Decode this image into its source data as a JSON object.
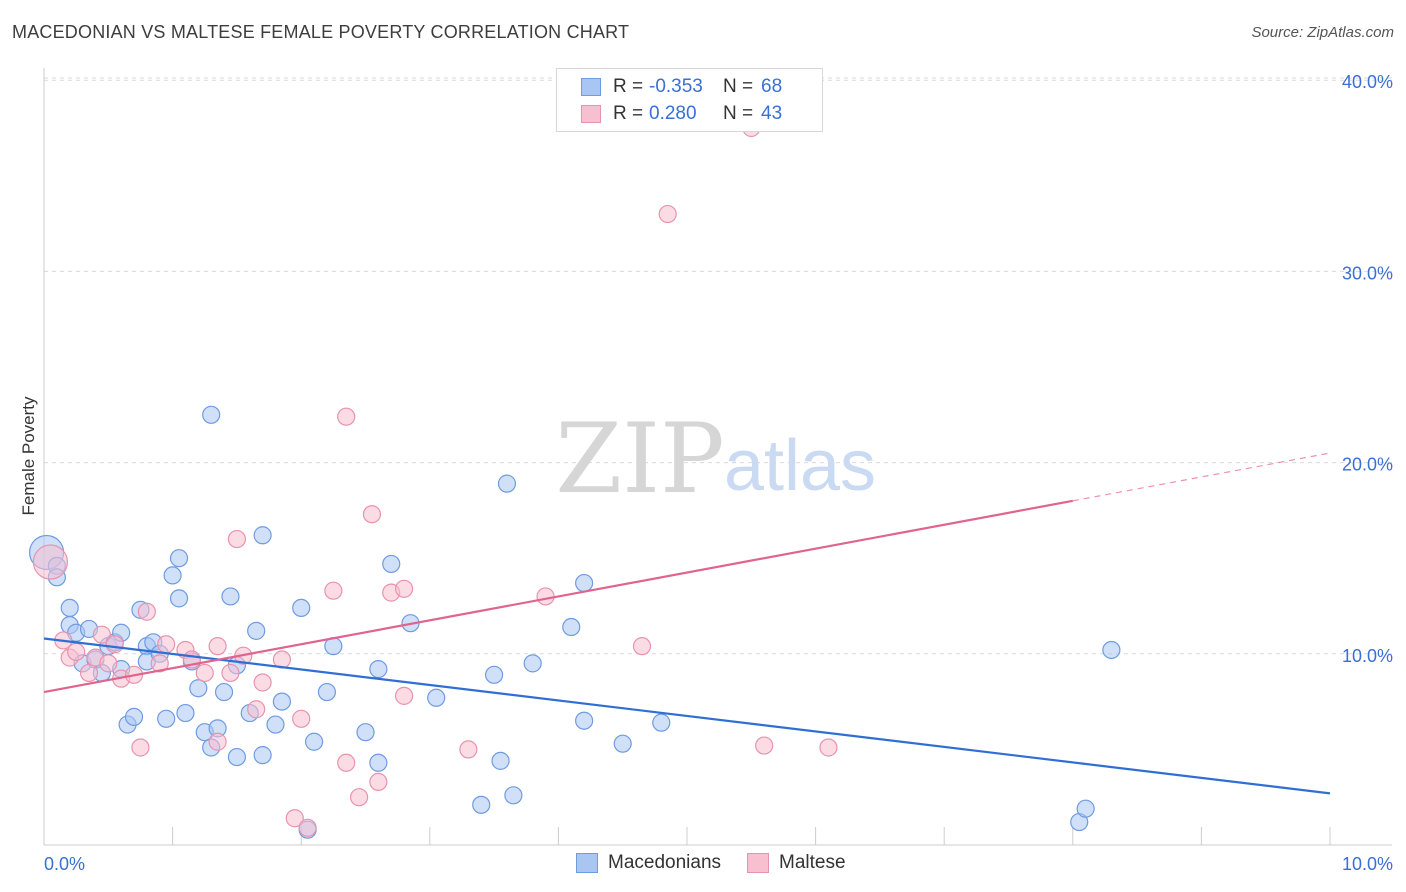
{
  "title": "MACEDONIAN VS MALTESE FEMALE POVERTY CORRELATION CHART",
  "source": "Source: ZipAtlas.com",
  "colors": {
    "macedonians_fill": "#a9c6f2",
    "macedonians_stroke": "#6f9be0",
    "macedonians_line": "#2f6fd4",
    "maltese_fill": "#f7bfd0",
    "maltese_stroke": "#e893ae",
    "maltese_line": "#e0648f",
    "axis_text": "#3a6fd6",
    "grid": "#d9d9d9"
  },
  "legend": {
    "rows": [
      {
        "r_label": "R =",
        "r_value": "-0.353",
        "n_label": "N =",
        "n_value": "68"
      },
      {
        "r_label": "R =",
        "r_value": "0.280",
        "n_label": "N =",
        "n_value": "43"
      }
    ],
    "bottom": [
      "Macedonians",
      "Maltese"
    ]
  },
  "watermark": {
    "zip": "ZIP",
    "atlas": "atlas"
  },
  "chart_data": {
    "type": "scatter",
    "title": "MACEDONIAN VS MALTESE FEMALE POVERTY CORRELATION CHART",
    "xlabel": "",
    "ylabel": "Female Poverty",
    "xlim": [
      0,
      10
    ],
    "ylim": [
      0,
      41.5
    ],
    "x_tick_labels": [
      {
        "value": 0,
        "label": "0.0%"
      },
      {
        "value": 10,
        "label": "10.0%"
      }
    ],
    "x_ticks": [
      0,
      1,
      2,
      3,
      4,
      5,
      6,
      7,
      8,
      9,
      10
    ],
    "y_ticks": [
      {
        "value": 10,
        "label": "10.0%"
      },
      {
        "value": 20,
        "label": "20.0%"
      },
      {
        "value": 30,
        "label": "30.0%"
      },
      {
        "value": 40,
        "label": "40.0%"
      }
    ],
    "grid": true,
    "series": [
      {
        "name": "Macedonians",
        "r": -0.353,
        "n": 68,
        "trend": {
          "x0": 0,
          "y0": 10.8,
          "x1": 10,
          "y1": 2.7
        },
        "points": [
          [
            0.02,
            15.3,
            "big"
          ],
          [
            0.1,
            14.6
          ],
          [
            0.1,
            14.0
          ],
          [
            0.2,
            12.4
          ],
          [
            0.2,
            11.5
          ],
          [
            0.25,
            11.1
          ],
          [
            0.3,
            9.5
          ],
          [
            0.35,
            11.3
          ],
          [
            0.4,
            9.7
          ],
          [
            0.45,
            9.0
          ],
          [
            0.5,
            10.4
          ],
          [
            0.55,
            10.6
          ],
          [
            0.6,
            11.1
          ],
          [
            0.6,
            9.2
          ],
          [
            0.65,
            6.3
          ],
          [
            0.7,
            6.7
          ],
          [
            0.75,
            12.3
          ],
          [
            0.8,
            10.4
          ],
          [
            0.8,
            9.6
          ],
          [
            0.85,
            10.6
          ],
          [
            0.9,
            10.0
          ],
          [
            0.95,
            6.6
          ],
          [
            1.0,
            14.1
          ],
          [
            1.05,
            12.9
          ],
          [
            1.05,
            15.0
          ],
          [
            1.1,
            6.9
          ],
          [
            1.15,
            9.6
          ],
          [
            1.2,
            8.2
          ],
          [
            1.25,
            5.9
          ],
          [
            1.3,
            5.1
          ],
          [
            1.3,
            22.5
          ],
          [
            1.35,
            6.1
          ],
          [
            1.4,
            8.0
          ],
          [
            1.45,
            13.0
          ],
          [
            1.5,
            9.4
          ],
          [
            1.5,
            4.6
          ],
          [
            1.6,
            6.9
          ],
          [
            1.65,
            11.2
          ],
          [
            1.7,
            16.2
          ],
          [
            1.7,
            4.7
          ],
          [
            1.8,
            6.3
          ],
          [
            1.85,
            7.5
          ],
          [
            2.0,
            12.4
          ],
          [
            2.05,
            0.8
          ],
          [
            2.1,
            5.4
          ],
          [
            2.2,
            8.0
          ],
          [
            2.25,
            10.4
          ],
          [
            2.5,
            5.9
          ],
          [
            2.6,
            9.2
          ],
          [
            2.6,
            4.3
          ],
          [
            2.7,
            14.7
          ],
          [
            2.85,
            11.6
          ],
          [
            3.05,
            7.7
          ],
          [
            3.4,
            2.1
          ],
          [
            3.5,
            8.9
          ],
          [
            3.55,
            4.4
          ],
          [
            3.6,
            18.9
          ],
          [
            3.65,
            2.6
          ],
          [
            3.8,
            9.5
          ],
          [
            4.1,
            11.4
          ],
          [
            4.2,
            13.7
          ],
          [
            4.2,
            6.5
          ],
          [
            4.5,
            5.3
          ],
          [
            4.8,
            6.4
          ],
          [
            8.05,
            1.2
          ],
          [
            8.1,
            1.9
          ],
          [
            8.3,
            10.2
          ]
        ]
      },
      {
        "name": "Maltese",
        "r": 0.28,
        "n": 43,
        "trend": {
          "x0": 0,
          "y0": 8.0,
          "x1": 8.0,
          "y1": 18.0,
          "dash_x1": 10,
          "dash_y1": 20.5
        },
        "points": [
          [
            0.05,
            14.8,
            "big"
          ],
          [
            0.15,
            10.7
          ],
          [
            0.2,
            9.8
          ],
          [
            0.25,
            10.1
          ],
          [
            0.35,
            9.0
          ],
          [
            0.4,
            9.8
          ],
          [
            0.45,
            11.0
          ],
          [
            0.5,
            9.5
          ],
          [
            0.55,
            10.5
          ],
          [
            0.6,
            8.7
          ],
          [
            0.7,
            8.9
          ],
          [
            0.75,
            5.1
          ],
          [
            0.8,
            12.2
          ],
          [
            0.9,
            9.5
          ],
          [
            0.95,
            10.5
          ],
          [
            1.1,
            10.2
          ],
          [
            1.15,
            9.7
          ],
          [
            1.25,
            9.0
          ],
          [
            1.35,
            5.4
          ],
          [
            1.35,
            10.4
          ],
          [
            1.45,
            9.0
          ],
          [
            1.5,
            16.0
          ],
          [
            1.55,
            9.9
          ],
          [
            1.65,
            7.1
          ],
          [
            1.7,
            8.5
          ],
          [
            1.85,
            9.7
          ],
          [
            1.95,
            1.4
          ],
          [
            2.0,
            6.6
          ],
          [
            2.05,
            0.9
          ],
          [
            2.25,
            13.3
          ],
          [
            2.35,
            4.3
          ],
          [
            2.35,
            22.4
          ],
          [
            2.45,
            2.5
          ],
          [
            2.55,
            17.3
          ],
          [
            2.6,
            3.3
          ],
          [
            2.7,
            13.2
          ],
          [
            2.8,
            7.8
          ],
          [
            2.8,
            13.4
          ],
          [
            3.3,
            5.0
          ],
          [
            3.9,
            13.0
          ],
          [
            4.65,
            10.4
          ],
          [
            4.85,
            33.0
          ],
          [
            5.5,
            37.5
          ],
          [
            5.6,
            5.2
          ],
          [
            6.1,
            5.1
          ]
        ]
      }
    ]
  }
}
